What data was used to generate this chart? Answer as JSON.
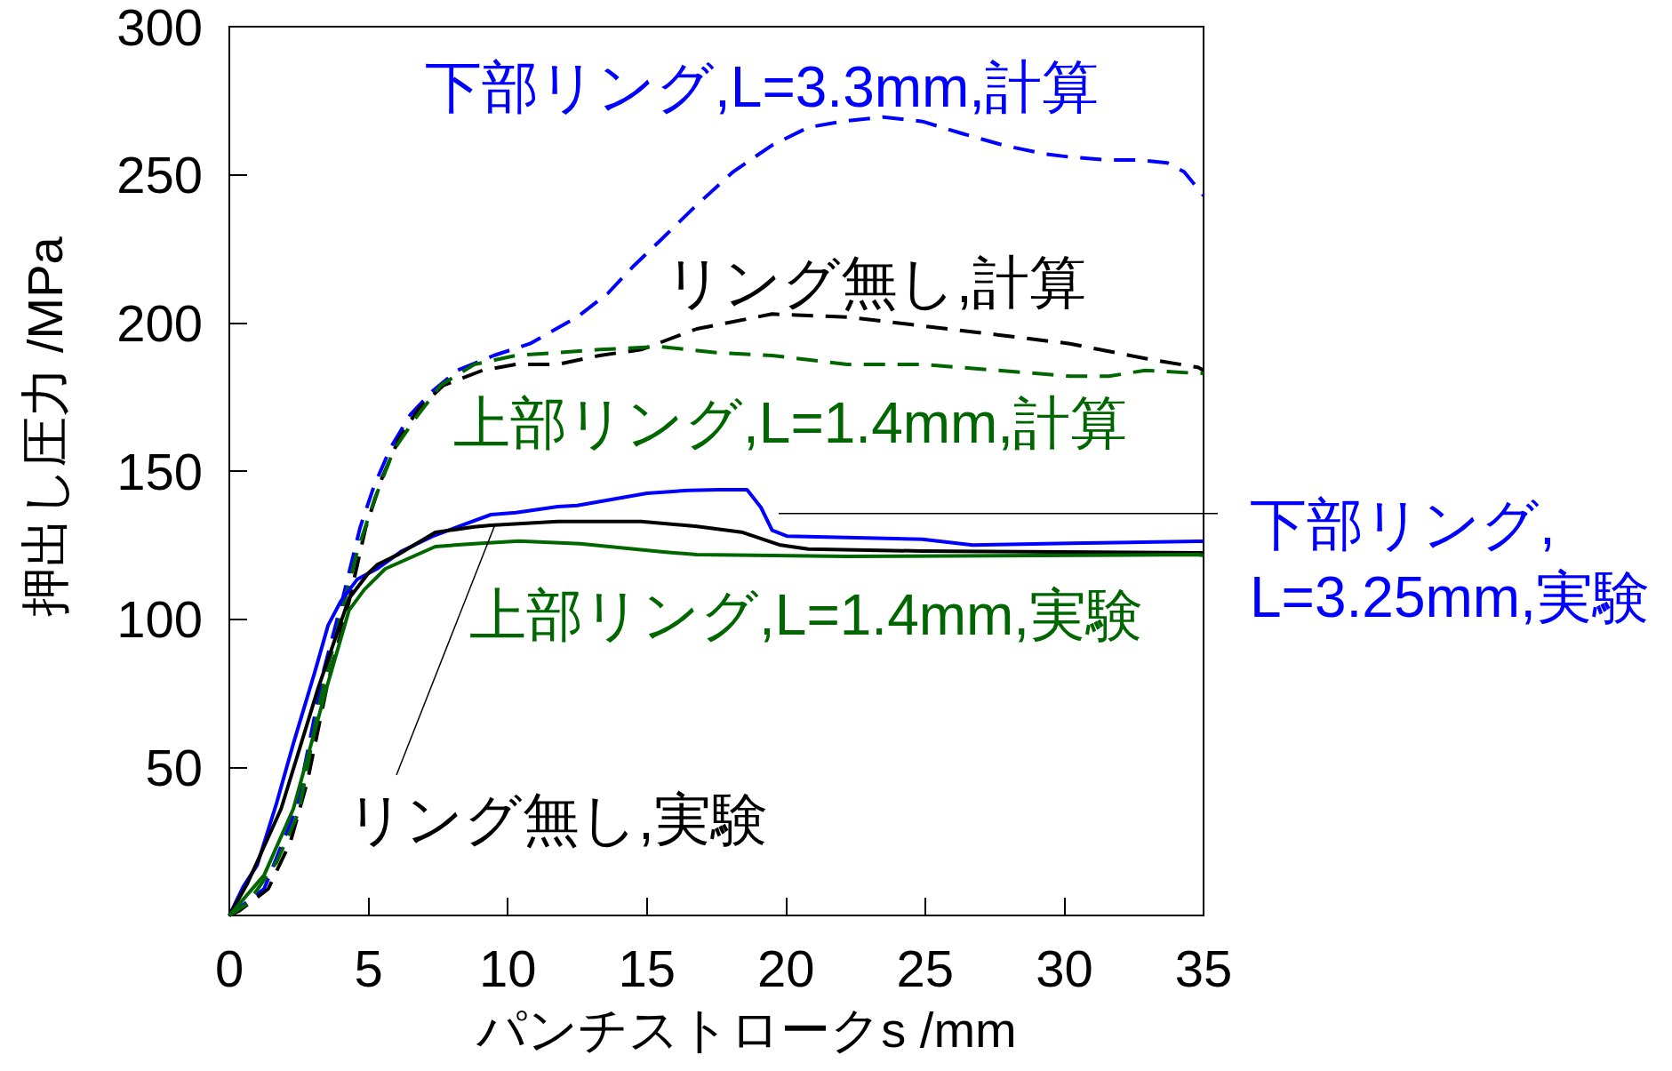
{
  "chart_data": {
    "type": "line",
    "xlabel": "パンチストロークs /mm",
    "ylabel": "押出し圧力 /MPa",
    "xlim": [
      0,
      35
    ],
    "xticks": [
      0,
      5,
      10,
      15,
      20,
      25,
      30,
      35
    ],
    "ylim": [
      0,
      300
    ],
    "yticks": [
      50,
      100,
      150,
      200,
      250,
      300
    ],
    "grid": false,
    "legend": false,
    "marker": "none",
    "series": [
      {
        "name": "下部リング,L=3.3mm,計算",
        "color": "#0000ff",
        "line_style": "dashed",
        "x": [
          0,
          1.25,
          2.4,
          3.4,
          4.1,
          4.7,
          5.2,
          5.8,
          6.5,
          7.3,
          8.2,
          9.5,
          10.8,
          12.5,
          13.6,
          14.5,
          15.5,
          16.7,
          18.1,
          19.5,
          20.8,
          22.0,
          23.5,
          24.9,
          26.3,
          27.8,
          29.3,
          30.2,
          31.5,
          32.7,
          33.7,
          34.3,
          35
        ],
        "values": [
          0,
          9,
          36,
          83,
          108,
          131,
          145,
          158,
          169,
          177,
          184,
          189,
          193,
          202,
          210,
          219,
          228,
          239,
          251,
          260,
          266,
          268,
          269.5,
          268,
          264,
          260,
          257,
          256,
          255,
          255,
          254,
          251,
          243
        ]
      },
      {
        "name": "リング無し,計算",
        "color": "#000000",
        "line_style": "dashed",
        "x": [
          0,
          0.35,
          1.4,
          2.2,
          2.8,
          3.5,
          4.3,
          4.9,
          5.5,
          6.1,
          6.8,
          7.7,
          9.1,
          10.3,
          11.8,
          13.3,
          14.8,
          16.8,
          19.5,
          22.2,
          24.9,
          27.6,
          30.2,
          32.9,
          34.8,
          35
        ],
        "values": [
          0,
          1.5,
          9,
          25,
          45,
          77,
          106,
          131,
          148,
          161,
          171,
          179,
          184,
          186,
          186,
          189,
          191,
          198,
          203,
          202,
          199,
          196,
          193,
          188,
          185,
          184
        ]
      },
      {
        "name": "上部リング,L=1.4mm,計算",
        "color": "#006600",
        "line_style": "dashed",
        "x": [
          0,
          0.65,
          1.7,
          2.5,
          3.2,
          4.0,
          4.6,
          5.2,
          5.9,
          6.7,
          7.6,
          8.8,
          10.3,
          13.3,
          15.5,
          17.5,
          19.5,
          22.2,
          24.9,
          27.6,
          30.2,
          31.6,
          32.9,
          34.8,
          35
        ],
        "values": [
          0,
          4,
          18,
          35,
          70,
          101,
          123,
          140,
          157,
          168,
          179,
          186,
          189,
          191,
          192,
          190,
          189,
          186,
          186,
          184,
          182,
          182,
          184,
          183,
          183
        ]
      },
      {
        "name": "下部リング,L=3.25mm,実験",
        "color": "#0000ff",
        "line_style": "solid",
        "x": [
          0,
          0.5,
          1.0,
          1.7,
          2.3,
          3.05,
          3.55,
          4.0,
          4.6,
          5.3,
          6.2,
          7.3,
          8.3,
          9.4,
          10.3,
          11.8,
          12.5,
          15.0,
          16.5,
          17.6,
          18.6,
          19.1,
          19.5,
          20.05,
          24.9,
          26.7,
          30.2,
          34.8,
          35
        ],
        "values": [
          0,
          9.7,
          17,
          38,
          58,
          81.5,
          98,
          106,
          113.5,
          117,
          123,
          128,
          131.5,
          135.3,
          136,
          138,
          138.4,
          142.5,
          143.5,
          143.7,
          143.7,
          137.7,
          130,
          128,
          127,
          125,
          125.6,
          126.3,
          126.3
        ]
      },
      {
        "name": "リング無し,実験",
        "color": "#000000",
        "line_style": "solid",
        "x": [
          0,
          0.65,
          1.86,
          3.2,
          4.3,
          5.0,
          5.33,
          6.1,
          7.4,
          8.8,
          9.4,
          11.8,
          14.8,
          16.8,
          18.4,
          19.8,
          20.8,
          24.9,
          34.8,
          35
        ],
        "values": [
          0,
          10.8,
          36,
          77,
          107,
          115.6,
          118.5,
          122,
          129.3,
          131.2,
          131.7,
          133,
          133,
          131.3,
          129.4,
          125,
          123.7,
          123,
          122.4,
          122.4
        ]
      },
      {
        "name": "上部リング,L=1.4mm,実験",
        "color": "#006600",
        "line_style": "solid",
        "x": [
          0,
          1.25,
          2.3,
          3.5,
          4.3,
          4.85,
          5.6,
          7.4,
          8.8,
          10.4,
          12.6,
          15.6,
          16.8,
          22.2,
          34.8,
          35
        ],
        "values": [
          0,
          13.6,
          36,
          77,
          103,
          110,
          117,
          124.5,
          125.5,
          126.4,
          125.5,
          122.7,
          121.8,
          121.2,
          121.8,
          121.5
        ]
      }
    ]
  }
}
